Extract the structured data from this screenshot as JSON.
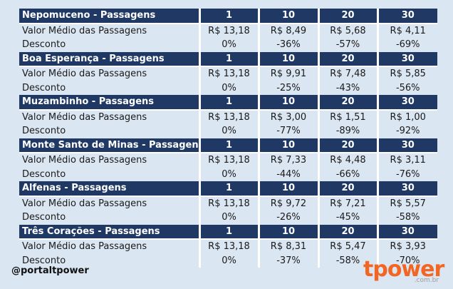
{
  "table": {
    "header_values": [
      "1",
      "10",
      "20",
      "30"
    ],
    "value_label": "Valor Médio das Passagens",
    "discount_label": "Desconto",
    "groups": [
      {
        "title": "Nepomuceno - Passagens",
        "values": [
          "R$ 13,18",
          "R$ 8,49",
          "R$ 5,68",
          "R$ 4,11"
        ],
        "discounts": [
          "0%",
          "-36%",
          "-57%",
          "-69%"
        ]
      },
      {
        "title": "Boa Esperança - Passagens",
        "values": [
          "R$ 13,18",
          "R$ 9,91",
          "R$ 7,48",
          "R$ 5,85"
        ],
        "discounts": [
          "0%",
          "-25%",
          "-43%",
          "-56%"
        ]
      },
      {
        "title": "Muzambinho - Passagens",
        "values": [
          "R$ 13,18",
          "R$ 3,00",
          "R$ 1,51",
          "R$ 1,00"
        ],
        "discounts": [
          "0%",
          "-77%",
          "-89%",
          "-92%"
        ]
      },
      {
        "title": "Monte Santo de Minas - Passagens",
        "values": [
          "R$ 13,18",
          "R$ 7,33",
          "R$ 4,48",
          "R$ 3,11"
        ],
        "discounts": [
          "0%",
          "-44%",
          "-66%",
          "-76%"
        ]
      },
      {
        "title": "Alfenas - Passagens",
        "values": [
          "R$ 13,18",
          "R$ 9,72",
          "R$ 7,21",
          "R$ 5,57"
        ],
        "discounts": [
          "0%",
          "-26%",
          "-45%",
          "-58%"
        ]
      },
      {
        "title": "Três Corações - Passagens",
        "values": [
          "R$ 13,18",
          "R$ 8,31",
          "R$ 5,47",
          "R$ 3,93"
        ],
        "discounts": [
          "0%",
          "-37%",
          "-58%",
          "-70%"
        ]
      }
    ]
  },
  "footer": {
    "handle": "@portaltpower",
    "logo_text": "tpower",
    "logo_sub": ".com.br"
  },
  "colors": {
    "header_bg": "#1f3864",
    "row_bg": "#dbe6f3",
    "logo": "#f26522"
  }
}
